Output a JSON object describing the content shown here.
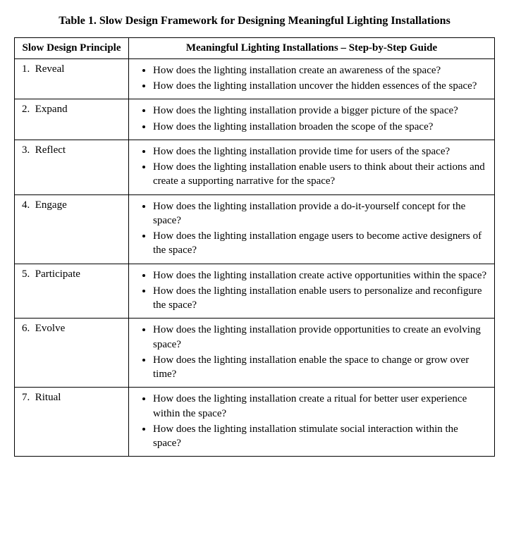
{
  "title": "Table 1. Slow Design Framework for Designing Meaningful Lighting Installations",
  "headers": {
    "col1": "Slow Design Principle",
    "col2": "Meaningful Lighting Installations – Step-by-Step Guide"
  },
  "rows": [
    {
      "num": "1.",
      "name": "Reveal",
      "bullets": [
        "How does the lighting installation create an awareness of the space?",
        "How does the lighting installation uncover the hidden essences of the space?"
      ]
    },
    {
      "num": "2.",
      "name": "Expand",
      "bullets": [
        "How does the lighting installation provide a bigger picture of the space?",
        "How does the lighting installation broaden the scope of the space?"
      ]
    },
    {
      "num": "3.",
      "name": "Reflect",
      "bullets": [
        "How does the lighting installation provide time for users of the space?",
        "How does the lighting installation enable users to think about their actions and create a supporting narrative for the space?"
      ]
    },
    {
      "num": "4.",
      "name": "Engage",
      "bullets": [
        "How does the lighting installation provide a do-it-yourself concept for the space?",
        "How does the lighting installation engage users to become active designers of the space?"
      ]
    },
    {
      "num": "5.",
      "name": "Participate",
      "bullets": [
        "How does the lighting installation create active opportunities within the space?",
        "How does the lighting installation enable users to personalize and reconfigure the space?"
      ]
    },
    {
      "num": "6.",
      "name": "Evolve",
      "bullets": [
        "How does the lighting installation provide opportunities to create an evolving space?",
        "How does the lighting installation enable the space to change or grow over time?"
      ]
    },
    {
      "num": "7.",
      "name": "Ritual",
      "bullets": [
        "How does the lighting installation create a ritual for better user experience within the space?",
        "How does the lighting installation stimulate social interaction within the space?"
      ]
    }
  ]
}
